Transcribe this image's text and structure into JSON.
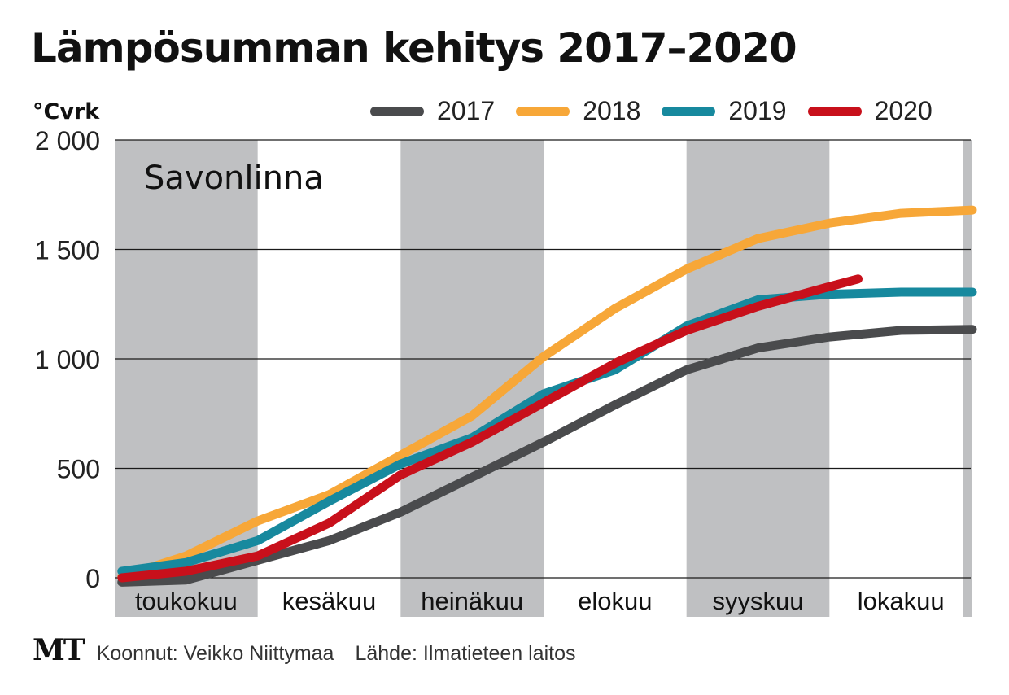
{
  "title": "Lämpösumman kehitys 2017–2020",
  "unit": "°Cvrk",
  "footer": {
    "logo": "MT",
    "credit": "Koonnut: Veikko Niittymaa",
    "source": "Lähde: Ilmatieteen laitos"
  },
  "chart_data": {
    "type": "line",
    "annotation": "Savonlinna",
    "months": [
      "toukokuu",
      "kesäkuu",
      "heinäkuu",
      "elokuu",
      "syyskuu",
      "lokakuu"
    ],
    "x_unit": "month index (0 = start of toukokuu, 6 = end of lokakuu)",
    "ylim": [
      0,
      2000
    ],
    "yticks": [
      0,
      500,
      1000,
      1500,
      2000
    ],
    "ytick_labels": [
      "0",
      "500",
      "1 000",
      "1 500",
      "2 000"
    ],
    "grid": true,
    "legend_position": "top",
    "series": [
      {
        "name": "2017",
        "color": "#4a4b4d",
        "points": [
          [
            0.05,
            -20
          ],
          [
            0.5,
            -10
          ],
          [
            1.0,
            80
          ],
          [
            1.5,
            170
          ],
          [
            2.0,
            300
          ],
          [
            2.5,
            460
          ],
          [
            3.0,
            620
          ],
          [
            3.5,
            790
          ],
          [
            4.0,
            950
          ],
          [
            4.5,
            1050
          ],
          [
            5.0,
            1100
          ],
          [
            5.5,
            1130
          ],
          [
            6.0,
            1135
          ]
        ]
      },
      {
        "name": "2018",
        "color": "#f7a738",
        "points": [
          [
            0.05,
            5
          ],
          [
            0.5,
            100
          ],
          [
            1.0,
            260
          ],
          [
            1.5,
            380
          ],
          [
            2.0,
            560
          ],
          [
            2.5,
            740
          ],
          [
            3.0,
            1010
          ],
          [
            3.5,
            1230
          ],
          [
            4.0,
            1410
          ],
          [
            4.5,
            1550
          ],
          [
            5.0,
            1620
          ],
          [
            5.5,
            1665
          ],
          [
            6.0,
            1680
          ]
        ]
      },
      {
        "name": "2019",
        "color": "#17899e",
        "points": [
          [
            0.05,
            30
          ],
          [
            0.5,
            70
          ],
          [
            1.0,
            170
          ],
          [
            1.5,
            350
          ],
          [
            2.0,
            520
          ],
          [
            2.5,
            640
          ],
          [
            3.0,
            840
          ],
          [
            3.5,
            950
          ],
          [
            4.0,
            1150
          ],
          [
            4.5,
            1270
          ],
          [
            5.0,
            1295
          ],
          [
            5.5,
            1305
          ],
          [
            6.0,
            1305
          ]
        ]
      },
      {
        "name": "2020",
        "color": "#c8101b",
        "points": [
          [
            0.05,
            0
          ],
          [
            0.5,
            30
          ],
          [
            1.0,
            100
          ],
          [
            1.5,
            250
          ],
          [
            2.0,
            470
          ],
          [
            2.5,
            620
          ],
          [
            3.0,
            800
          ],
          [
            3.5,
            980
          ],
          [
            4.0,
            1130
          ],
          [
            4.5,
            1240
          ],
          [
            5.0,
            1330
          ],
          [
            5.2,
            1365
          ]
        ]
      }
    ]
  }
}
